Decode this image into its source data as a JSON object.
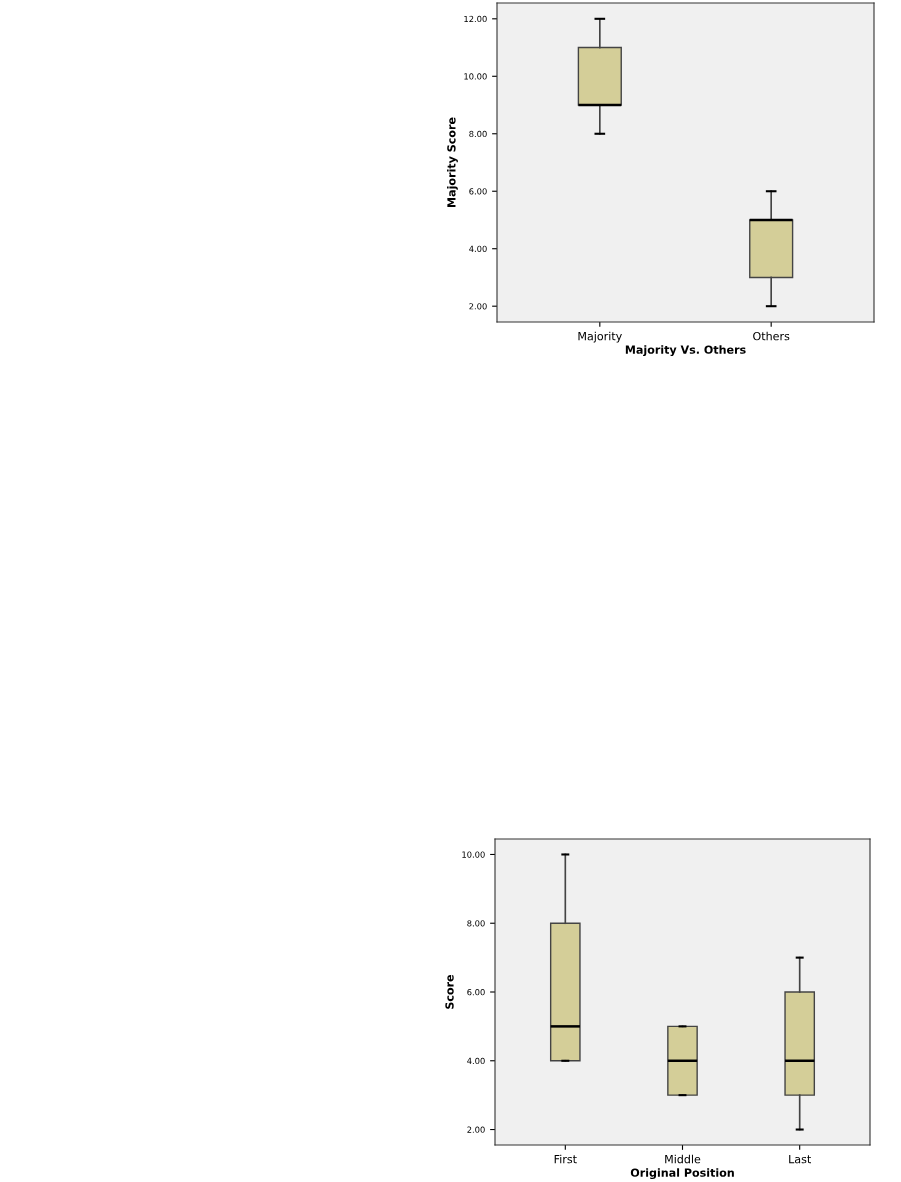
{
  "chart_data": [
    {
      "type": "box",
      "xlabel": "Majority Vs. Others",
      "ylabel": "Majority Score",
      "categories": [
        "Majority",
        "Others"
      ],
      "color": "#d4ce98",
      "boxes": [
        {
          "low": 8,
          "q1": 9,
          "median": 9,
          "q3": 11,
          "high": 12
        },
        {
          "low": 2,
          "q1": 3,
          "median": 5,
          "q3": 5,
          "high": 6
        }
      ],
      "ylim": [
        1.45,
        12.55
      ],
      "yticks": [
        {
          "value": 2,
          "label": "2.00"
        },
        {
          "value": 4,
          "label": "4.00"
        },
        {
          "value": 6,
          "label": "6.00"
        },
        {
          "value": 8,
          "label": "8.00"
        },
        {
          "value": 10,
          "label": "10.00"
        },
        {
          "value": 12,
          "label": "12.00"
        }
      ],
      "grid": false,
      "legend": false
    },
    {
      "type": "box",
      "xlabel": "Original Position",
      "ylabel": "Score",
      "categories": [
        "First",
        "Middle",
        "Last"
      ],
      "color": "#d4ce98",
      "boxes": [
        {
          "low": 4,
          "q1": 4,
          "median": 5,
          "q3": 8,
          "high": 10
        },
        {
          "low": 3,
          "q1": 3,
          "median": 4,
          "q3": 5,
          "high": 5
        },
        {
          "low": 2,
          "q1": 3,
          "median": 4,
          "q3": 6,
          "high": 7
        }
      ],
      "ylim": [
        1.55,
        10.45
      ],
      "yticks": [
        {
          "value": 2,
          "label": "2.00"
        },
        {
          "value": 4,
          "label": "4.00"
        },
        {
          "value": 6,
          "label": "6.00"
        },
        {
          "value": 8,
          "label": "8.00"
        },
        {
          "value": 10,
          "label": "10.00"
        }
      ],
      "grid": false,
      "legend": false
    }
  ]
}
